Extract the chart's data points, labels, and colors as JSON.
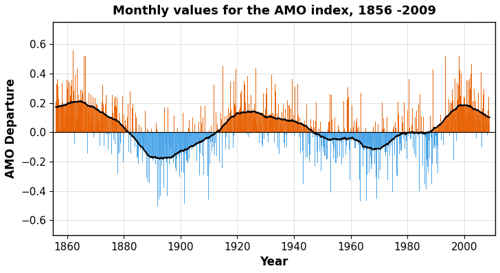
{
  "title": "Monthly values for the AMO index, 1856 -2009",
  "xlabel": "Year",
  "ylabel": "AMO Departure",
  "year_start": 1856,
  "year_end": 2009,
  "months_per_year": 12,
  "ylim": [
    -0.7,
    0.75
  ],
  "yticks": [
    -0.6,
    -0.4,
    -0.2,
    0,
    0.2,
    0.4,
    0.6
  ],
  "xticks": [
    1860,
    1880,
    1900,
    1920,
    1940,
    1960,
    1980,
    2000
  ],
  "color_positive": "#E8650A",
  "color_negative": "#4da6e8",
  "color_line": "#000000",
  "color_bg": "#ffffff",
  "title_fontsize": 13,
  "axis_fontsize": 12,
  "tick_fontsize": 11,
  "line_width": 1.5,
  "bar_width": 0.085
}
